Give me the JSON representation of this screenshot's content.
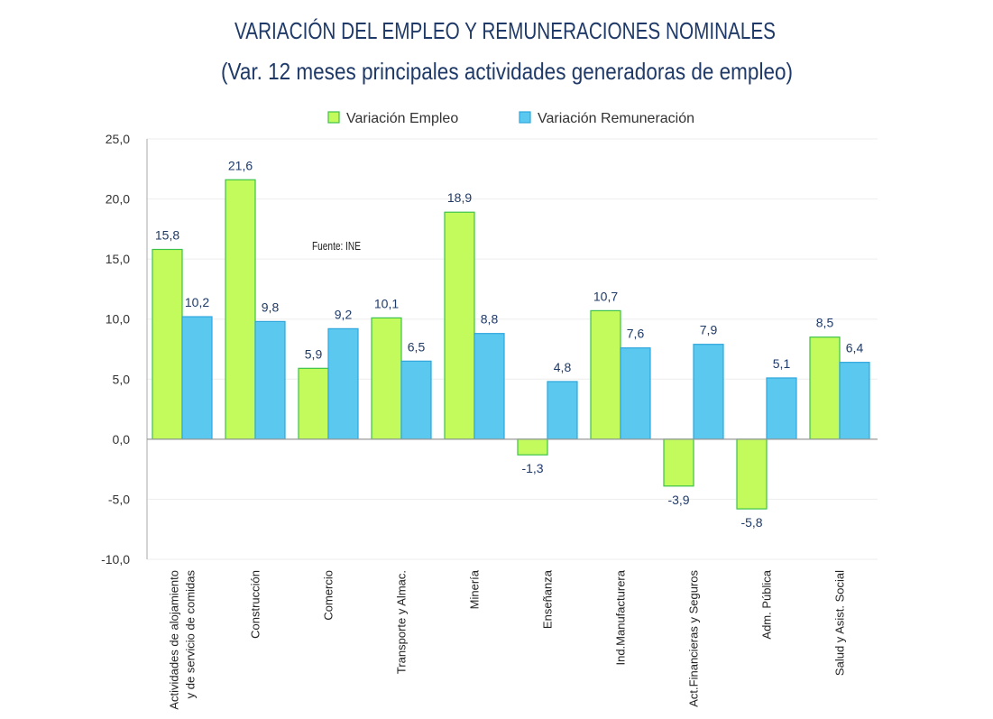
{
  "chart_data": {
    "type": "bar",
    "title": "VARIACIÓN DEL EMPLEO Y REMUNERACIONES NOMINALES",
    "subtitle": "(Var. 12 meses principales actividades generadoras de empleo)",
    "annotation": "Fuente: INE",
    "legend_position": "top",
    "categories": [
      [
        "Actividades de alojamiento",
        "y de servicio de comidas"
      ],
      [
        "Construcción"
      ],
      [
        "Comercio"
      ],
      [
        "Transporte y Almac."
      ],
      [
        "Minería"
      ],
      [
        "Enseñanza"
      ],
      [
        "Ind.Manufacturera"
      ],
      [
        "Act.Financieras y Seguros"
      ],
      [
        "Adm. Pública"
      ],
      [
        "Salud y Asist. Social"
      ]
    ],
    "series": [
      {
        "name": "Variación Empleo",
        "color": "#c2fb5b",
        "stroke": "#3cc24a",
        "values": [
          15.8,
          21.6,
          5.9,
          10.1,
          18.9,
          -1.3,
          10.7,
          -3.9,
          -5.8,
          8.5
        ],
        "labels": [
          "15,8",
          "21,6",
          "5,9",
          "10,1",
          "18,9",
          "-1,3",
          "10,7",
          "-3,9",
          "-5,8",
          "8,5"
        ]
      },
      {
        "name": "Variación Remuneración",
        "color": "#5bc8f0",
        "stroke": "#2ea6dc",
        "values": [
          10.2,
          9.8,
          9.2,
          6.5,
          8.8,
          4.8,
          7.6,
          7.9,
          5.1,
          6.4
        ],
        "labels": [
          "10,2",
          "9,8",
          "9,2",
          "6,5",
          "8,8",
          "4,8",
          "7,6",
          "7,9",
          "5,1",
          "6,4"
        ]
      }
    ],
    "ylim": [
      -10,
      25
    ],
    "yticks": [
      25,
      20,
      15,
      10,
      5,
      0,
      -5,
      -10
    ],
    "ytick_labels": [
      "25,0",
      "20,0",
      "15,0",
      "10,0",
      "5,0",
      "0,0",
      "-5,0",
      "-10,0"
    ],
    "grid": true,
    "xlabel": "",
    "ylabel": ""
  }
}
